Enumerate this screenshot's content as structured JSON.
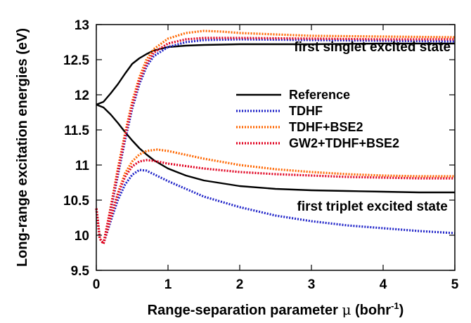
{
  "chart_data": {
    "type": "line",
    "xlabel_main": "Range-separation parameter ",
    "xlabel_mu": "μ",
    "xlabel_unit": " (bohr",
    "xlabel_sup": "-1",
    "xlabel_end": ")",
    "ylabel": "Long-range excitation energies (eV)",
    "xlim": [
      0,
      5
    ],
    "ylim": [
      9.5,
      13
    ],
    "xticks": [
      "0",
      "1",
      "2",
      "3",
      "4",
      "5"
    ],
    "yticks": [
      "9.5",
      "10",
      "10.5",
      "11",
      "11.5",
      "12",
      "12.5",
      "13"
    ],
    "grid": false,
    "legend_position": "center-right",
    "annotations": [
      {
        "text": "first singlet excited state",
        "x": 3.85,
        "y": 12.62
      },
      {
        "text": "first triplet excited state",
        "x": 3.85,
        "y": 10.35
      }
    ],
    "series": [
      {
        "name": "Reference",
        "color": "#000000",
        "style": "solid",
        "state": "singlet",
        "points": [
          [
            0,
            11.86
          ],
          [
            0.1,
            11.9
          ],
          [
            0.2,
            12.02
          ],
          [
            0.3,
            12.15
          ],
          [
            0.4,
            12.3
          ],
          [
            0.5,
            12.44
          ],
          [
            0.6,
            12.52
          ],
          [
            0.7,
            12.58
          ],
          [
            0.8,
            12.63
          ],
          [
            1.0,
            12.68
          ],
          [
            1.25,
            12.7
          ],
          [
            1.5,
            12.71
          ],
          [
            2,
            12.72
          ],
          [
            3,
            12.72
          ],
          [
            4,
            12.73
          ],
          [
            5,
            12.73
          ]
        ]
      },
      {
        "name": "Reference",
        "color": "#000000",
        "style": "solid",
        "state": "triplet",
        "points": [
          [
            0,
            11.86
          ],
          [
            0.1,
            11.82
          ],
          [
            0.2,
            11.72
          ],
          [
            0.3,
            11.6
          ],
          [
            0.4,
            11.47
          ],
          [
            0.5,
            11.35
          ],
          [
            0.6,
            11.24
          ],
          [
            0.7,
            11.15
          ],
          [
            0.8,
            11.07
          ],
          [
            1.0,
            10.95
          ],
          [
            1.25,
            10.85
          ],
          [
            1.5,
            10.78
          ],
          [
            2,
            10.7
          ],
          [
            2.5,
            10.66
          ],
          [
            3,
            10.64
          ],
          [
            3.5,
            10.63
          ],
          [
            4,
            10.62
          ],
          [
            4.5,
            10.61
          ],
          [
            5,
            10.61
          ]
        ]
      },
      {
        "name": "TDHF",
        "color": "#1f23c8",
        "style": "dotted",
        "state": "singlet",
        "points": [
          [
            0,
            10.38
          ],
          [
            0.05,
            9.95
          ],
          [
            0.1,
            9.88
          ],
          [
            0.2,
            10.35
          ],
          [
            0.3,
            10.85
          ],
          [
            0.4,
            11.35
          ],
          [
            0.5,
            11.8
          ],
          [
            0.6,
            12.15
          ],
          [
            0.7,
            12.4
          ],
          [
            0.8,
            12.55
          ],
          [
            1.0,
            12.68
          ],
          [
            1.25,
            12.75
          ],
          [
            1.5,
            12.78
          ],
          [
            2,
            12.79
          ],
          [
            3,
            12.78
          ],
          [
            4,
            12.77
          ],
          [
            5,
            12.76
          ]
        ]
      },
      {
        "name": "TDHF",
        "color": "#1f23c8",
        "style": "dotted",
        "state": "triplet",
        "points": [
          [
            0,
            10.38
          ],
          [
            0.05,
            9.95
          ],
          [
            0.1,
            9.88
          ],
          [
            0.2,
            10.2
          ],
          [
            0.3,
            10.5
          ],
          [
            0.4,
            10.72
          ],
          [
            0.5,
            10.86
          ],
          [
            0.6,
            10.93
          ],
          [
            0.7,
            10.92
          ],
          [
            0.8,
            10.87
          ],
          [
            1.0,
            10.77
          ],
          [
            1.5,
            10.55
          ],
          [
            2,
            10.4
          ],
          [
            2.5,
            10.28
          ],
          [
            3,
            10.2
          ],
          [
            3.5,
            10.14
          ],
          [
            4,
            10.1
          ],
          [
            4.5,
            10.06
          ],
          [
            5,
            10.03
          ]
        ]
      },
      {
        "name": "TDHF+BSE2",
        "color": "#ff6600",
        "style": "dotted",
        "state": "singlet",
        "points": [
          [
            0,
            10.38
          ],
          [
            0.05,
            9.95
          ],
          [
            0.1,
            9.88
          ],
          [
            0.2,
            10.4
          ],
          [
            0.3,
            10.95
          ],
          [
            0.4,
            11.45
          ],
          [
            0.5,
            11.9
          ],
          [
            0.6,
            12.25
          ],
          [
            0.7,
            12.5
          ],
          [
            0.8,
            12.65
          ],
          [
            1.0,
            12.8
          ],
          [
            1.25,
            12.88
          ],
          [
            1.5,
            12.91
          ],
          [
            1.75,
            12.9
          ],
          [
            2,
            12.88
          ],
          [
            3,
            12.84
          ],
          [
            4,
            12.83
          ],
          [
            5,
            12.82
          ]
        ]
      },
      {
        "name": "TDHF+BSE2",
        "color": "#ff6600",
        "style": "dotted",
        "state": "triplet",
        "points": [
          [
            0,
            10.38
          ],
          [
            0.05,
            9.95
          ],
          [
            0.1,
            9.88
          ],
          [
            0.2,
            10.25
          ],
          [
            0.3,
            10.6
          ],
          [
            0.4,
            10.88
          ],
          [
            0.5,
            11.05
          ],
          [
            0.6,
            11.15
          ],
          [
            0.7,
            11.2
          ],
          [
            0.85,
            11.22
          ],
          [
            1.0,
            11.2
          ],
          [
            1.5,
            11.09
          ],
          [
            2,
            11.0
          ],
          [
            2.5,
            10.94
          ],
          [
            3,
            10.9
          ],
          [
            3.5,
            10.87
          ],
          [
            4,
            10.85
          ],
          [
            4.5,
            10.84
          ],
          [
            5,
            10.84
          ]
        ]
      },
      {
        "name": "GW2+TDHF+BSE2",
        "color": "#e0001f",
        "style": "dotted",
        "state": "singlet",
        "points": [
          [
            0,
            10.38
          ],
          [
            0.05,
            9.95
          ],
          [
            0.1,
            9.88
          ],
          [
            0.2,
            10.38
          ],
          [
            0.3,
            10.9
          ],
          [
            0.4,
            11.4
          ],
          [
            0.5,
            11.85
          ],
          [
            0.6,
            12.2
          ],
          [
            0.7,
            12.44
          ],
          [
            0.8,
            12.6
          ],
          [
            1.0,
            12.73
          ],
          [
            1.25,
            12.79
          ],
          [
            1.5,
            12.81
          ],
          [
            2,
            12.81
          ],
          [
            3,
            12.8
          ],
          [
            4,
            12.79
          ],
          [
            5,
            12.79
          ]
        ]
      },
      {
        "name": "GW2+TDHF+BSE2",
        "color": "#e0001f",
        "style": "dotted",
        "state": "triplet",
        "points": [
          [
            0,
            10.38
          ],
          [
            0.05,
            9.95
          ],
          [
            0.1,
            9.88
          ],
          [
            0.2,
            10.25
          ],
          [
            0.3,
            10.58
          ],
          [
            0.4,
            10.83
          ],
          [
            0.5,
            10.98
          ],
          [
            0.6,
            11.05
          ],
          [
            0.7,
            11.07
          ],
          [
            0.8,
            11.06
          ],
          [
            1.0,
            11.02
          ],
          [
            1.5,
            10.95
          ],
          [
            2,
            10.9
          ],
          [
            2.5,
            10.87
          ],
          [
            3,
            10.85
          ],
          [
            3.5,
            10.83
          ],
          [
            4,
            10.82
          ],
          [
            4.5,
            10.81
          ],
          [
            5,
            10.81
          ]
        ]
      }
    ],
    "legend": [
      {
        "label": "Reference",
        "color": "#000000",
        "style": "solid"
      },
      {
        "label": "TDHF",
        "color": "#1f23c8",
        "style": "dotted"
      },
      {
        "label": "TDHF+BSE2",
        "color": "#ff6600",
        "style": "dotted"
      },
      {
        "label": "GW2+TDHF+BSE2",
        "color": "#e0001f",
        "style": "dotted"
      }
    ]
  }
}
